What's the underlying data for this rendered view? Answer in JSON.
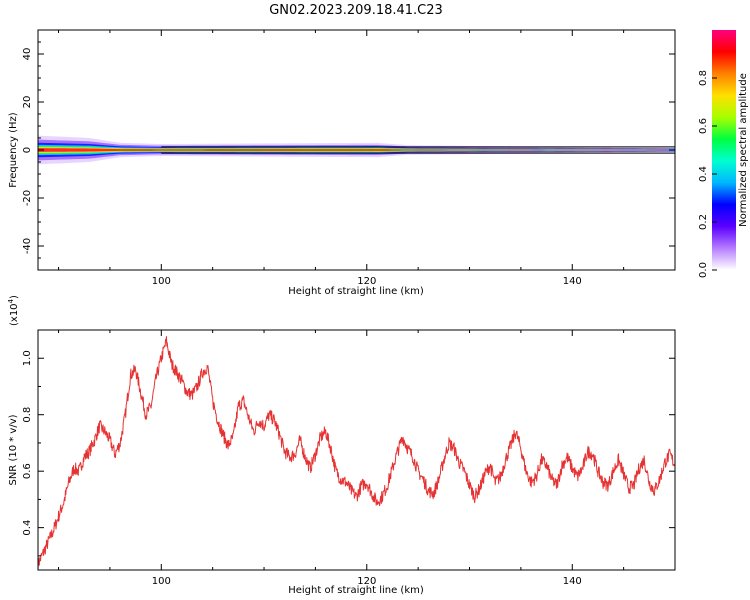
{
  "title": "GN02.2023.209.18.41.C23",
  "chart_data": [
    {
      "type": "heatmap",
      "xlabel": "Height of straight line (km)",
      "ylabel": "Frequency (Hz)",
      "xlim": [
        88,
        150
      ],
      "ylim": [
        -50,
        50
      ],
      "xticks": [
        100,
        120,
        140
      ],
      "yticks": [
        -40,
        -20,
        0,
        20,
        40
      ],
      "colorbar": {
        "label": "Normalized spectral amplitude",
        "range": [
          0.0,
          1.0
        ],
        "ticks": [
          0.0,
          0.2,
          0.4,
          0.6,
          0.8
        ],
        "colormap": [
          "#ffffff",
          "#b57cff",
          "#5a00ff",
          "#0000ff",
          "#00b7ff",
          "#00ffd0",
          "#00ff40",
          "#a8ff00",
          "#ffe000",
          "#ff8000",
          "#ff0000",
          "#ff0080"
        ]
      },
      "band_center_hz": 0,
      "band_halfwidth_hz": [
        {
          "x": 88,
          "v": 6
        },
        {
          "x": 93,
          "v": 5
        },
        {
          "x": 96,
          "v": 3
        },
        {
          "x": 100,
          "v": 2.5
        },
        {
          "x": 121,
          "v": 3
        },
        {
          "x": 124,
          "v": 2
        },
        {
          "x": 134,
          "v": 1.5
        },
        {
          "x": 150,
          "v": 1
        }
      ]
    },
    {
      "type": "line",
      "xlabel": "Height of straight line (km)",
      "ylabel": "SNR (10 * v/v)",
      "y_multiplier": "(x10",
      "y_multiplier_exp": "4",
      "y_multiplier_close": ")",
      "xlim": [
        88,
        150
      ],
      "ylim": [
        0.25,
        1.1
      ],
      "xticks": [
        100,
        120,
        140
      ],
      "yticks": [
        0.4,
        0.6,
        0.8,
        1.0
      ],
      "color": "#e63232",
      "series": [
        {
          "points": [
            [
              88,
              0.27
            ],
            [
              88.5,
              0.31
            ],
            [
              89,
              0.35
            ],
            [
              89.5,
              0.39
            ],
            [
              90,
              0.44
            ],
            [
              90.5,
              0.49
            ],
            [
              91,
              0.56
            ],
            [
              91.5,
              0.61
            ],
            [
              92,
              0.6
            ],
            [
              92.5,
              0.65
            ],
            [
              93,
              0.67
            ],
            [
              93.5,
              0.71
            ],
            [
              94,
              0.76
            ],
            [
              94.5,
              0.74
            ],
            [
              95,
              0.71
            ],
            [
              95.5,
              0.66
            ],
            [
              96,
              0.7
            ],
            [
              96.5,
              0.8
            ],
            [
              97,
              0.94
            ],
            [
              97.5,
              0.96
            ],
            [
              98,
              0.88
            ],
            [
              98.5,
              0.8
            ],
            [
              99,
              0.83
            ],
            [
              99.5,
              0.93
            ],
            [
              100,
              1.0
            ],
            [
              100.5,
              1.06
            ],
            [
              101,
              0.98
            ],
            [
              101.5,
              0.95
            ],
            [
              102,
              0.92
            ],
            [
              102.5,
              0.88
            ],
            [
              103,
              0.87
            ],
            [
              103.5,
              0.9
            ],
            [
              104,
              0.95
            ],
            [
              104.5,
              0.97
            ],
            [
              105,
              0.85
            ],
            [
              105.5,
              0.78
            ],
            [
              106,
              0.73
            ],
            [
              106.5,
              0.69
            ],
            [
              107,
              0.72
            ],
            [
              107.5,
              0.83
            ],
            [
              108,
              0.85
            ],
            [
              108.5,
              0.79
            ],
            [
              109,
              0.74
            ],
            [
              109.5,
              0.78
            ],
            [
              110,
              0.76
            ],
            [
              110.5,
              0.8
            ],
            [
              111,
              0.78
            ],
            [
              111.5,
              0.73
            ],
            [
              112,
              0.67
            ],
            [
              112.5,
              0.65
            ],
            [
              113,
              0.66
            ],
            [
              113.5,
              0.71
            ],
            [
              114,
              0.65
            ],
            [
              114.5,
              0.61
            ],
            [
              115,
              0.66
            ],
            [
              115.5,
              0.72
            ],
            [
              116,
              0.74
            ],
            [
              116.5,
              0.68
            ],
            [
              117,
              0.6
            ],
            [
              117.5,
              0.57
            ],
            [
              118,
              0.56
            ],
            [
              118.5,
              0.53
            ],
            [
              119,
              0.51
            ],
            [
              119.5,
              0.55
            ],
            [
              120,
              0.56
            ],
            [
              120.5,
              0.52
            ],
            [
              121,
              0.49
            ],
            [
              121.5,
              0.51
            ],
            [
              122,
              0.55
            ],
            [
              122.5,
              0.61
            ],
            [
              123,
              0.67
            ],
            [
              123.5,
              0.72
            ],
            [
              124,
              0.68
            ],
            [
              124.5,
              0.65
            ],
            [
              125,
              0.6
            ],
            [
              125.5,
              0.57
            ],
            [
              126,
              0.53
            ],
            [
              126.5,
              0.52
            ],
            [
              127,
              0.57
            ],
            [
              127.5,
              0.64
            ],
            [
              128,
              0.7
            ],
            [
              128.5,
              0.68
            ],
            [
              129,
              0.63
            ],
            [
              129.5,
              0.6
            ],
            [
              130,
              0.55
            ],
            [
              130.5,
              0.51
            ],
            [
              131,
              0.54
            ],
            [
              131.5,
              0.59
            ],
            [
              132,
              0.62
            ],
            [
              132.5,
              0.56
            ],
            [
              133,
              0.58
            ],
            [
              133.5,
              0.64
            ],
            [
              134,
              0.69
            ],
            [
              134.5,
              0.74
            ],
            [
              135,
              0.68
            ],
            [
              135.5,
              0.6
            ],
            [
              136,
              0.56
            ],
            [
              136.5,
              0.58
            ],
            [
              137,
              0.64
            ],
            [
              137.5,
              0.62
            ],
            [
              138,
              0.57
            ],
            [
              138.5,
              0.55
            ],
            [
              139,
              0.62
            ],
            [
              139.5,
              0.65
            ],
            [
              140,
              0.61
            ],
            [
              140.5,
              0.58
            ],
            [
              141,
              0.61
            ],
            [
              141.5,
              0.67
            ],
            [
              142,
              0.66
            ],
            [
              142.5,
              0.6
            ],
            [
              143,
              0.56
            ],
            [
              143.5,
              0.55
            ],
            [
              144,
              0.6
            ],
            [
              144.5,
              0.64
            ],
            [
              145,
              0.59
            ],
            [
              145.5,
              0.54
            ],
            [
              146,
              0.55
            ],
            [
              146.5,
              0.61
            ],
            [
              147,
              0.64
            ],
            [
              147.5,
              0.56
            ],
            [
              148,
              0.53
            ],
            [
              148.5,
              0.57
            ],
            [
              149,
              0.63
            ],
            [
              149.5,
              0.66
            ],
            [
              150,
              0.62
            ]
          ]
        }
      ]
    }
  ]
}
